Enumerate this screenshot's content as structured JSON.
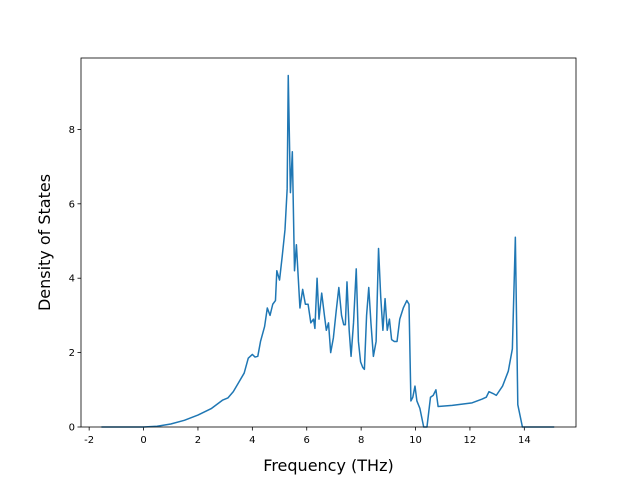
{
  "chart_data": {
    "type": "line",
    "xlabel": "Frequency (THz)",
    "ylabel": "Density of States",
    "x": [
      -1.55,
      0,
      0.5,
      1,
      1.5,
      2,
      2.5,
      2.9,
      3.1,
      3.3,
      3.5,
      3.7,
      3.85,
      4.0,
      4.1,
      4.2,
      4.3,
      4.45,
      4.55,
      4.65,
      4.75,
      4.85,
      4.9,
      5.0,
      5.1,
      5.2,
      5.28,
      5.32,
      5.4,
      5.47,
      5.55,
      5.62,
      5.75,
      5.85,
      5.95,
      6.05,
      6.15,
      6.25,
      6.3,
      6.38,
      6.45,
      6.55,
      6.65,
      6.72,
      6.8,
      6.88,
      6.98,
      7.08,
      7.18,
      7.28,
      7.36,
      7.42,
      7.48,
      7.56,
      7.63,
      7.72,
      7.82,
      7.9,
      7.98,
      8.06,
      8.12,
      8.2,
      8.28,
      8.36,
      8.45,
      8.55,
      8.64,
      8.72,
      8.8,
      8.88,
      8.96,
      9.04,
      9.12,
      9.22,
      9.32,
      9.42,
      9.55,
      9.68,
      9.76,
      9.83,
      9.9,
      9.98,
      10.05,
      10.16,
      10.3,
      10.42,
      10.55,
      10.65,
      10.75,
      10.83,
      11.35,
      12.08,
      12.45,
      12.6,
      12.7,
      12.85,
      12.97,
      13.2,
      13.41,
      13.56,
      13.67,
      13.76,
      13.93,
      15.1
    ],
    "series": [
      {
        "color": "#1f77b4",
        "values": [
          0,
          0,
          0.02,
          0.08,
          0.18,
          0.32,
          0.5,
          0.72,
          0.78,
          0.95,
          1.2,
          1.45,
          1.85,
          1.95,
          1.88,
          1.9,
          2.3,
          2.7,
          3.2,
          3.0,
          3.3,
          3.4,
          4.2,
          3.95,
          4.6,
          5.3,
          6.4,
          9.45,
          6.3,
          7.4,
          4.2,
          4.9,
          3.2,
          3.7,
          3.3,
          3.3,
          2.8,
          2.9,
          2.65,
          4.0,
          2.9,
          3.6,
          3.0,
          2.6,
          2.8,
          2.0,
          2.4,
          3.1,
          3.75,
          3.0,
          2.75,
          2.75,
          3.9,
          2.6,
          1.9,
          2.8,
          4.25,
          2.3,
          1.75,
          1.6,
          1.55,
          3.0,
          3.75,
          2.8,
          1.9,
          2.3,
          4.8,
          3.5,
          2.6,
          3.45,
          2.6,
          2.9,
          2.35,
          2.3,
          2.3,
          2.9,
          3.2,
          3.4,
          3.3,
          0.7,
          0.8,
          1.1,
          0.7,
          0.5,
          0,
          0,
          0.8,
          0.85,
          1.0,
          0.55,
          0.58,
          0.65,
          0.75,
          0.8,
          0.95,
          0.9,
          0.85,
          1.1,
          1.5,
          2.1,
          5.1,
          0.6,
          0,
          0
        ]
      }
    ],
    "xlim": [
      -2.3,
      15.9
    ],
    "ylim": [
      0,
      9.92
    ],
    "xticks": [
      -2,
      0,
      2,
      4,
      6,
      8,
      10,
      12,
      14
    ],
    "yticks": [
      0,
      2,
      4,
      6,
      8
    ]
  }
}
